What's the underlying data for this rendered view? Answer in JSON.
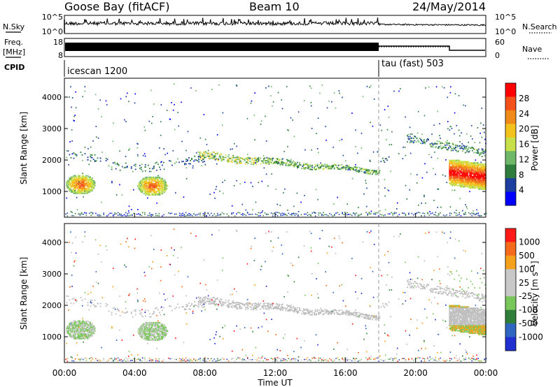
{
  "header": {
    "title": "Goose Bay (fitACF)",
    "beam": "Beam 10",
    "date": "24/May/2014"
  },
  "nsky_panel": {
    "left_label": "N.Sky",
    "right_label": "N.Search",
    "left_ticks": [
      "10^5",
      "10^0"
    ],
    "right_ticks": [
      "10^5",
      "10^0"
    ]
  },
  "freq_panel": {
    "left_label_1": "Freq.",
    "left_label_2": "[MHz]",
    "right_label": "Nave",
    "left_ticks": [
      "18",
      "8"
    ],
    "right_ticks": [
      "60",
      "0"
    ]
  },
  "cpid_panel": {
    "label": "CPID",
    "modes": [
      "icescan 1200",
      "tau (fast) 503"
    ]
  },
  "colors": {
    "power_scale": [
      "#0000ff",
      "#1c3fa0",
      "#2e7d3c",
      "#6fb86a",
      "#c7e04a",
      "#f4c21c",
      "#f08a1a",
      "#f4501a",
      "#ff0000"
    ],
    "velocity_scale": [
      "#1f2fd0",
      "#2e66c2",
      "#2f7f3a",
      "#79c65a",
      "#c8c8c8",
      "#c8c8c8",
      "#f5a11b",
      "#f56a1b",
      "#ff1a1a"
    ],
    "ground_scatter": "#bdbdbd"
  },
  "chart_data": [
    {
      "type": "heatmap",
      "name": "power-panel",
      "ylabel": "Slant Range [km]",
      "yticks": [
        1000,
        2000,
        3000,
        4000
      ],
      "ylim": [
        180,
        4600
      ],
      "xlim_hours": [
        0,
        24
      ],
      "colorbar_label": "Power [dB]",
      "colorbar_ticks": [
        "28",
        "24",
        "20",
        "16",
        "12",
        "8",
        "4"
      ],
      "colorbar_range": [
        0,
        30
      ],
      "mode_change_hour": 18
    },
    {
      "type": "heatmap",
      "name": "velocity-panel",
      "ylabel": "Slant Range [km]",
      "yticks": [
        1000,
        2000,
        3000,
        4000
      ],
      "ylim": [
        180,
        4600
      ],
      "xlim_hours": [
        0,
        24
      ],
      "xticks": [
        "00:00",
        "04:00",
        "08:00",
        "12:00",
        "16:00",
        "20:00",
        "00:00"
      ],
      "xlabel": "Time UT",
      "colorbar_label": "Velocity [m s^-1]",
      "colorbar_ticks": [
        "1000",
        "500",
        "100",
        "25",
        "-25",
        "-100",
        "-500",
        "-1000"
      ],
      "mode_change_hour": 18
    }
  ]
}
